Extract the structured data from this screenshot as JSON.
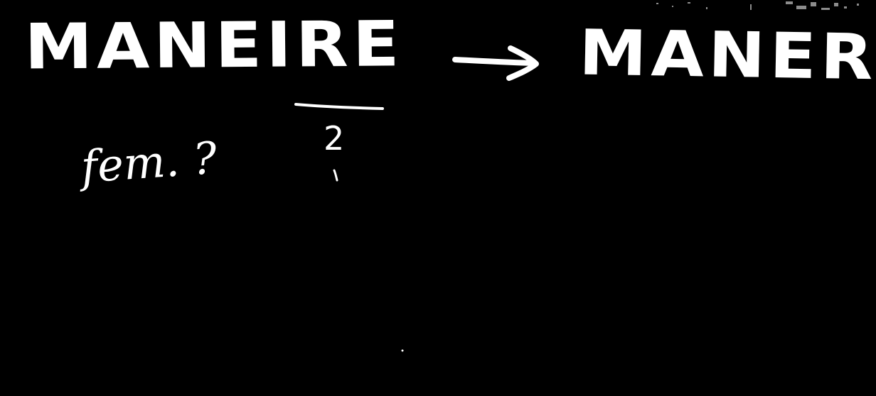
{
  "board": {
    "background_color": "#000000",
    "ink_color": "#ffffff",
    "word_main": "MANEIRE",
    "word_target": "MANER",
    "note_fem": "fem. ?",
    "note_two": "2"
  },
  "icons": {
    "arrow": "right-arrow-icon",
    "underline": "underline-stroke",
    "comma_mark": "comma-mark"
  }
}
